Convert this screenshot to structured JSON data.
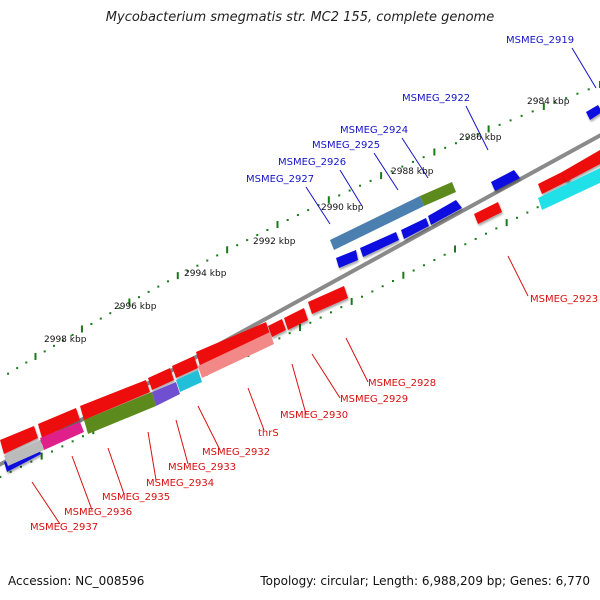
{
  "header": {
    "title": "Mycobacterium smegmatis str. MC2 155, complete genome"
  },
  "footer": {
    "accession": "Accession: NC_008596",
    "stats": "Topology: circular; Length: 6,988,209 bp; Genes: 6,770"
  },
  "ticks": [
    {
      "label": "2984 kbp"
    },
    {
      "label": "2986 kbp"
    },
    {
      "label": "2988 kbp"
    },
    {
      "label": "2990 kbp"
    },
    {
      "label": "2992 kbp"
    },
    {
      "label": "2994 kbp"
    },
    {
      "label": "2996 kbp"
    },
    {
      "label": "2998 kbp"
    }
  ],
  "genes_forward": [
    {
      "label": "MSMEG_2919"
    },
    {
      "label": "MSMEG_2922"
    },
    {
      "label": "MSMEG_2924"
    },
    {
      "label": "MSMEG_2925"
    },
    {
      "label": "MSMEG_2926"
    },
    {
      "label": "MSMEG_2927"
    }
  ],
  "genes_reverse": [
    {
      "label": "MSMEG_2923"
    },
    {
      "label": "MSMEG_2928"
    },
    {
      "label": "MSMEG_2929"
    },
    {
      "label": "MSMEG_2930"
    },
    {
      "label": "thrS"
    },
    {
      "label": "MSMEG_2932"
    },
    {
      "label": "MSMEG_2933"
    },
    {
      "label": "MSMEG_2934"
    },
    {
      "label": "MSMEG_2935"
    },
    {
      "label": "MSMEG_2936"
    },
    {
      "label": "MSMEG_2937"
    }
  ],
  "colors": {
    "forward_gene": "#1010e0",
    "reverse_gene": "#ee1111",
    "forward_label": "#1515c8",
    "reverse_label": "#d81010",
    "backbone": "#888888",
    "tick": "#1a7a1a",
    "cds_overlay": "#4a9a20"
  }
}
